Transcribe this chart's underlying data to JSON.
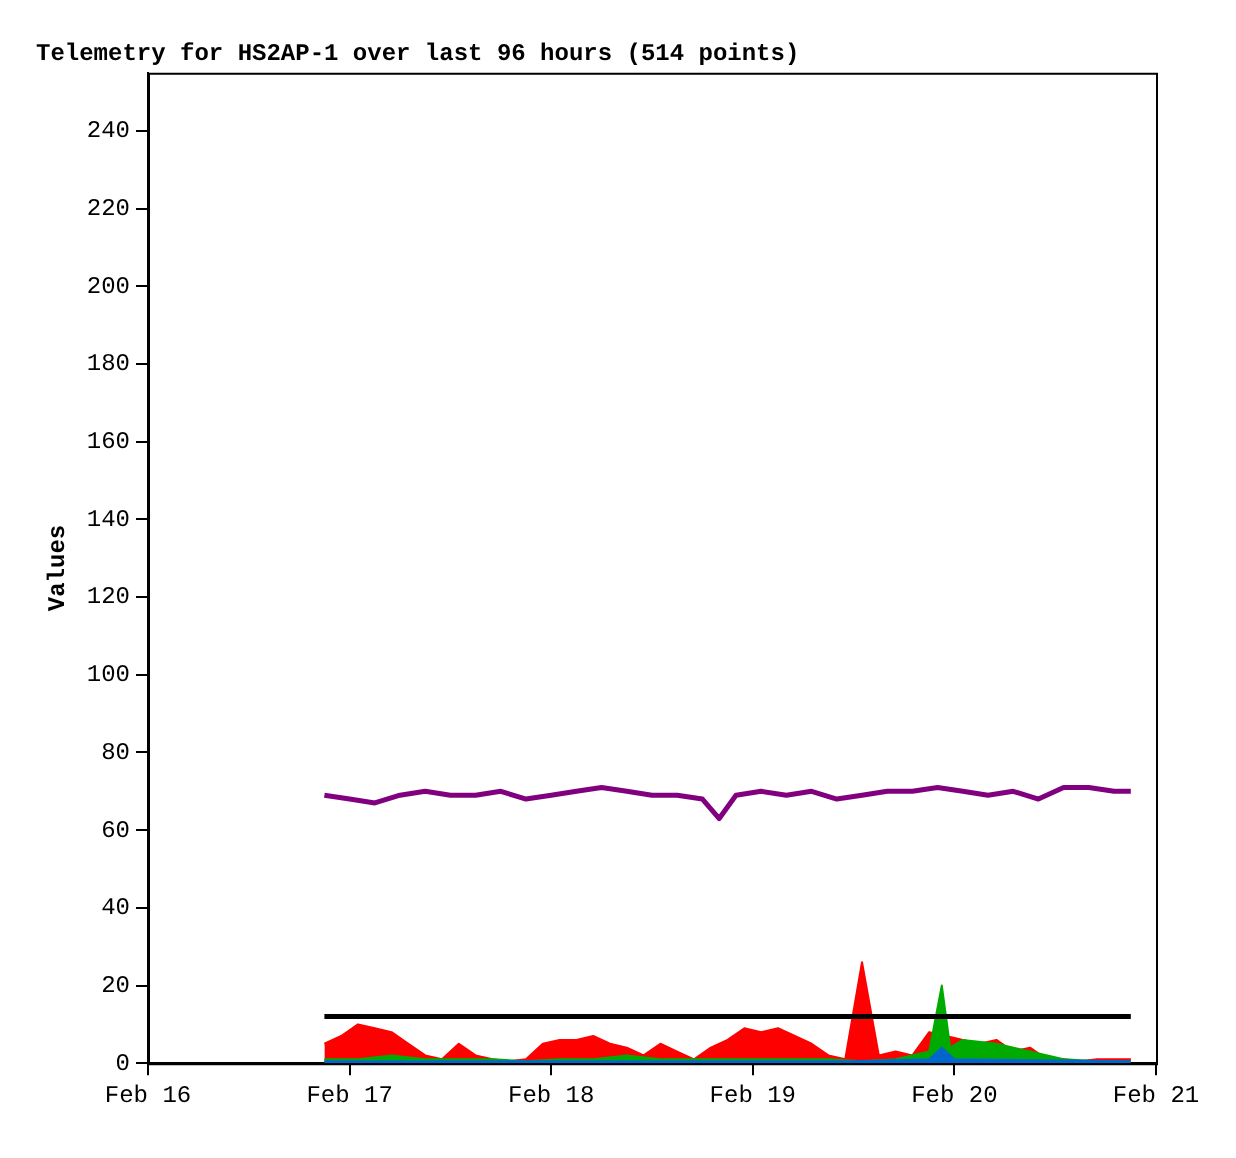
{
  "chart_data": {
    "type": "area",
    "title": "Telemetry for HS2AP-1 over last 96 hours (514 points)",
    "ylabel": "Values",
    "xlim": [
      "--02-16",
      "--02-21"
    ],
    "xticks": [
      {
        "value": "--02-16",
        "label": "Feb 16"
      },
      {
        "value": "--02-17",
        "label": "Feb 17"
      },
      {
        "value": "--02-18",
        "label": "Feb 18"
      },
      {
        "value": "--02-19",
        "label": "Feb 19"
      },
      {
        "value": "--02-20",
        "label": "Feb 20"
      },
      {
        "value": "--02-21",
        "label": "Feb 21"
      }
    ],
    "ylim": [
      0,
      255
    ],
    "yticks": [
      0,
      20,
      40,
      60,
      80,
      100,
      120,
      140,
      160,
      180,
      200,
      220,
      240
    ],
    "grid": false,
    "legend": false,
    "marker": "none",
    "series": [
      {
        "color": "#ff0000",
        "x": [
          "--02-16T21:00",
          "--02-16T23:00",
          "--02-17T01:00",
          "--02-17T03:00",
          "--02-17T05:00",
          "--02-17T07:00",
          "--02-17T09:00",
          "--02-17T11:00",
          "--02-17T13:00",
          "--02-17T15:00",
          "--02-17T17:00",
          "--02-17T19:00",
          "--02-17T21:00",
          "--02-17T23:00",
          "--02-18T01:00",
          "--02-18T03:00",
          "--02-18T05:00",
          "--02-18T07:00",
          "--02-18T09:00",
          "--02-18T11:00",
          "--02-18T13:00",
          "--02-18T15:00",
          "--02-18T17:00",
          "--02-18T19:00",
          "--02-18T21:00",
          "--02-18T23:00",
          "--02-19T01:00",
          "--02-19T03:00",
          "--02-19T05:00",
          "--02-19T07:00",
          "--02-19T09:00",
          "--02-19T11:00",
          "--02-19T13:00",
          "--02-19T15:00",
          "--02-19T17:00",
          "--02-19T19:00",
          "--02-19T21:00",
          "--02-19T23:00",
          "--02-20T01:00",
          "--02-20T03:00",
          "--02-20T05:00",
          "--02-20T07:00",
          "--02-20T09:00",
          "--02-20T11:00",
          "--02-20T13:00",
          "--02-20T15:00",
          "--02-20T17:00",
          "--02-20T19:00",
          "--02-20T21:00"
        ],
        "values": [
          5,
          7,
          10,
          9,
          8,
          5,
          2,
          1,
          5,
          2,
          1,
          0.5,
          1,
          5,
          6,
          6,
          7,
          5,
          4,
          2,
          5,
          3,
          1,
          4,
          6,
          9,
          8,
          9,
          7,
          5,
          2,
          1,
          26,
          2,
          3,
          2,
          8,
          7,
          6,
          5,
          6,
          3,
          4,
          1,
          1,
          0.5,
          1,
          1,
          1
        ]
      },
      {
        "color": "#00aa00",
        "x": [
          "--02-16T21:00",
          "--02-17T01:00",
          "--02-17T05:00",
          "--02-17T09:00",
          "--02-17T13:00",
          "--02-17T17:00",
          "--02-17T21:00",
          "--02-18T01:00",
          "--02-18T05:00",
          "--02-18T09:00",
          "--02-18T13:00",
          "--02-18T17:00",
          "--02-18T21:00",
          "--02-19T01:00",
          "--02-19T05:00",
          "--02-19T09:00",
          "--02-19T13:00",
          "--02-19T17:00",
          "--02-19T21:00",
          "--02-19T22:30",
          "--02-19T23:30",
          "--02-20T01:00",
          "--02-20T05:00",
          "--02-20T09:00",
          "--02-20T13:00",
          "--02-20T17:00",
          "--02-20T21:00"
        ],
        "values": [
          1,
          1,
          2,
          1,
          1,
          1,
          0.5,
          1,
          1,
          2,
          1,
          1,
          1,
          1,
          1,
          1,
          0.5,
          1,
          3,
          20,
          4,
          6,
          5,
          3,
          1,
          0.5,
          0.5
        ]
      },
      {
        "color": "#0066cc",
        "x": [
          "--02-16T21:00",
          "--02-18T12:00",
          "--02-19T12:00",
          "--02-19T21:00",
          "--02-19T22:30",
          "--02-20T00:00",
          "--02-20T21:00"
        ],
        "values": [
          0.5,
          0.5,
          0.5,
          1,
          4,
          1,
          0.5
        ]
      },
      {
        "type": "line",
        "color": "#800080",
        "x": [
          "--02-16T21:00",
          "--02-17T00:00",
          "--02-17T03:00",
          "--02-17T06:00",
          "--02-17T09:00",
          "--02-17T12:00",
          "--02-17T15:00",
          "--02-17T18:00",
          "--02-17T21:00",
          "--02-18T00:00",
          "--02-18T03:00",
          "--02-18T06:00",
          "--02-18T09:00",
          "--02-18T12:00",
          "--02-18T15:00",
          "--02-18T18:00",
          "--02-18T20:00",
          "--02-18T22:00",
          "--02-19T01:00",
          "--02-19T04:00",
          "--02-19T07:00",
          "--02-19T10:00",
          "--02-19T13:00",
          "--02-19T16:00",
          "--02-19T19:00",
          "--02-19T22:00",
          "--02-20T01:00",
          "--02-20T04:00",
          "--02-20T07:00",
          "--02-20T10:00",
          "--02-20T13:00",
          "--02-20T16:00",
          "--02-20T19:00",
          "--02-20T21:00"
        ],
        "values": [
          69,
          68,
          67,
          69,
          70,
          69,
          69,
          70,
          68,
          69,
          70,
          71,
          70,
          69,
          69,
          68,
          63,
          69,
          70,
          69,
          70,
          68,
          69,
          70,
          70,
          71,
          70,
          69,
          70,
          68,
          71,
          71,
          70,
          70
        ]
      },
      {
        "type": "line",
        "color": "#000000",
        "x": [
          "--02-16T21:00",
          "--02-20T21:00"
        ],
        "values": [
          12,
          12
        ]
      }
    ]
  }
}
